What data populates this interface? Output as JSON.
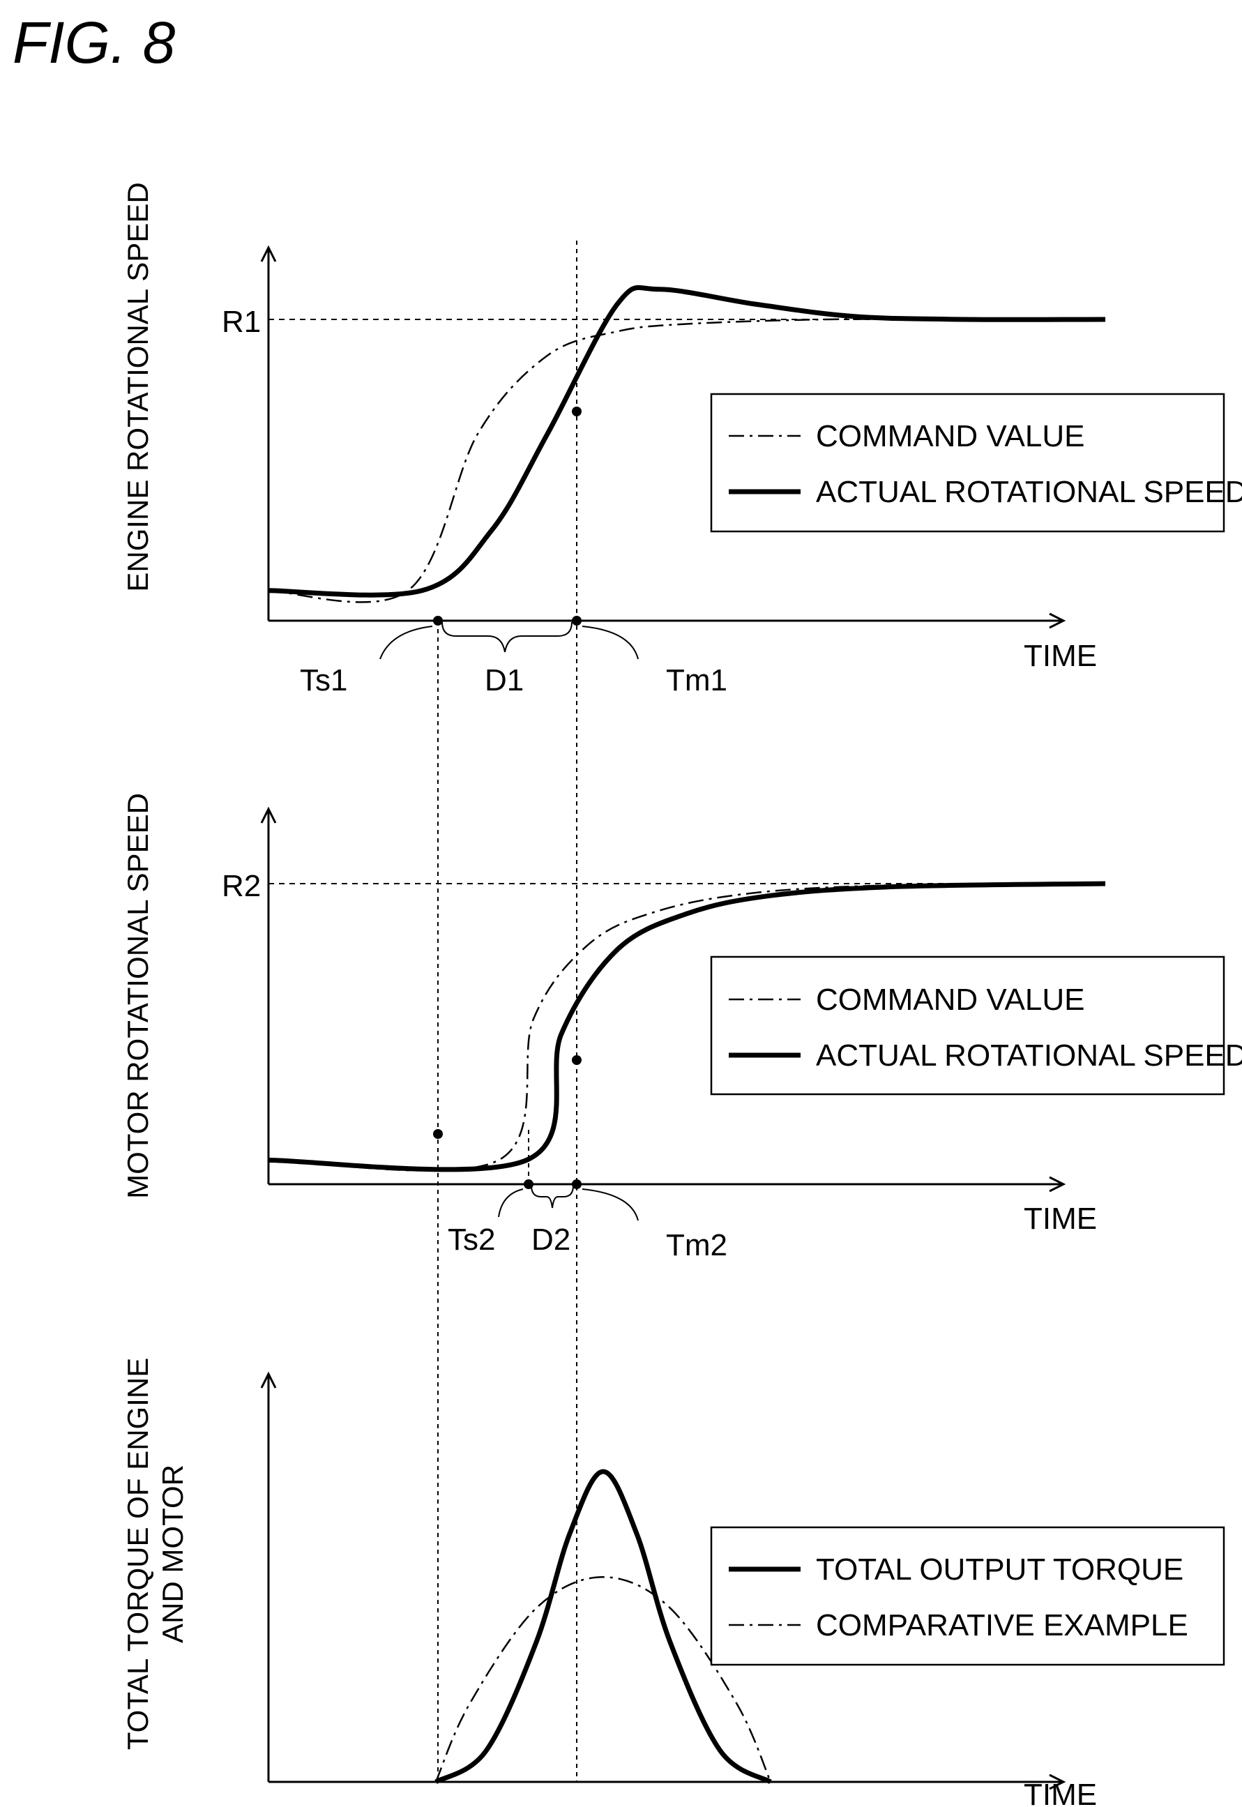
{
  "figure_title": "FIG. 8",
  "colors": {
    "ink": "#000000",
    "background": "#ffffff"
  },
  "chart_data": [
    {
      "type": "line",
      "ylabel": "ENGINE ROTATIONAL SPEED",
      "xlabel": "TIME",
      "y_tick": "R1",
      "legend": [
        "COMMAND VALUE",
        "ACTUAL ROTATIONAL SPEED"
      ],
      "annotations": [
        "Ts1",
        "D1",
        "Tm1"
      ],
      "grid": false,
      "legend_position": "right",
      "series": [
        {
          "name": "COMMAND VALUE",
          "style": "dash-dot",
          "x": [
            0,
            1,
            1.5,
            2,
            2.5,
            3,
            4,
            5,
            6
          ],
          "y": [
            0.1,
            0.1,
            0.62,
            0.88,
            0.96,
            0.985,
            1.0,
            1.0,
            1.0
          ]
        },
        {
          "name": "ACTUAL ROTATIONAL SPEED",
          "style": "solid-thick",
          "x": [
            0,
            1.1,
            1.6,
            2,
            2.5,
            2.8,
            3.5,
            4.2,
            5,
            6
          ],
          "y": [
            0.1,
            0.1,
            0.3,
            0.62,
            1.05,
            1.1,
            1.05,
            1.01,
            1.0,
            1.0
          ]
        }
      ]
    },
    {
      "type": "line",
      "ylabel": "MOTOR ROTATIONAL SPEED",
      "xlabel": "TIME",
      "y_tick": "R2",
      "legend": [
        "COMMAND VALUE",
        "ACTUAL ROTATIONAL SPEED"
      ],
      "annotations": [
        "Ts2",
        "D2",
        "Tm2"
      ],
      "grid": false,
      "legend_position": "right",
      "series": [
        {
          "name": "COMMAND VALUE",
          "style": "dash-dot",
          "x": [
            0,
            1.65,
            1.9,
            2.3,
            2.8,
            3.5,
            4.5,
            6
          ],
          "y": [
            0.08,
            0.08,
            0.55,
            0.8,
            0.91,
            0.97,
            0.995,
            1.0
          ]
        },
        {
          "name": "ACTUAL ROTATIONAL SPEED",
          "style": "solid-thick",
          "x": [
            0,
            1.85,
            2.1,
            2.5,
            3,
            3.6,
            4.5,
            6
          ],
          "y": [
            0.08,
            0.08,
            0.5,
            0.78,
            0.9,
            0.96,
            0.99,
            1.0
          ]
        }
      ]
    },
    {
      "type": "line",
      "ylabel": "TOTAL TORQUE OF ENGINE AND MOTOR",
      "ylabel_lines": [
        "TOTAL TORQUE OF ENGINE",
        "AND MOTOR"
      ],
      "xlabel": "TIME",
      "legend": [
        "TOTAL OUTPUT TORQUE",
        "COMPARATIVE EXAMPLE"
      ],
      "grid": false,
      "legend_position": "right",
      "series": [
        {
          "name": "TOTAL OUTPUT TORQUE",
          "style": "solid-thick",
          "x": [
            1,
            1.3,
            1.6,
            1.8,
            2,
            2.2,
            2.4,
            2.7,
            3
          ],
          "y": [
            0,
            0.1,
            0.45,
            0.8,
            1.0,
            0.8,
            0.45,
            0.1,
            0
          ]
        },
        {
          "name": "COMPARATIVE EXAMPLE",
          "style": "dash-dot",
          "x": [
            1,
            1.2,
            1.6,
            2,
            2.4,
            2.8,
            3
          ],
          "y": [
            0,
            0.25,
            0.56,
            0.66,
            0.56,
            0.25,
            0
          ]
        }
      ]
    }
  ]
}
